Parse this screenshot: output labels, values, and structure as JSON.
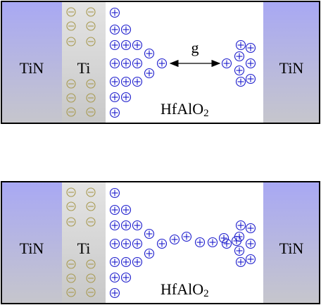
{
  "panels": [
    {
      "left_electrode": "TiN",
      "interlayer": "Ti",
      "oxide": {
        "name": "HfAlO",
        "subscript": "2"
      },
      "gap_label": "g",
      "right_electrode": "TiN"
    },
    {
      "left_electrode": "TiN",
      "interlayer": "Ti",
      "oxide": {
        "name": "HfAlO",
        "subscript": "2"
      },
      "right_electrode": "TiN"
    }
  ]
}
